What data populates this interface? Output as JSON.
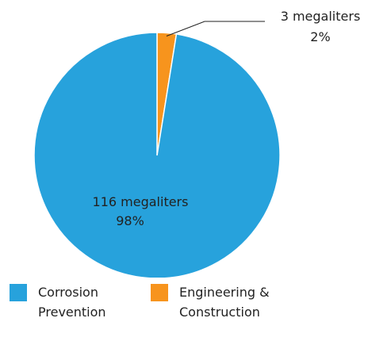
{
  "chart_data": {
    "type": "pie",
    "categories": [
      "Corrosion Prevention",
      "Engineering & Construction"
    ],
    "values": [
      116,
      3
    ],
    "value_labels": [
      "116 megaliters",
      "3 megaliters"
    ],
    "percentages": [
      98,
      2
    ],
    "percentage_labels": [
      "98%",
      "2%"
    ],
    "colors": [
      "#27a2dc",
      "#f7941d"
    ],
    "legend": "bottom"
  }
}
